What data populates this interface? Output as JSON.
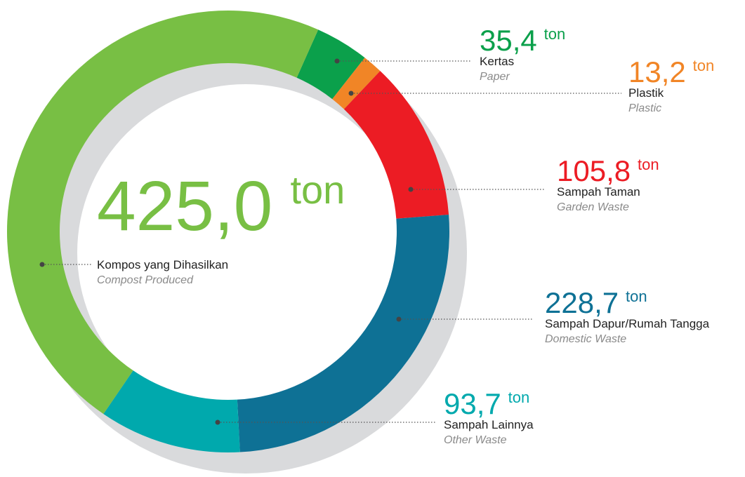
{
  "chart_data": {
    "type": "donut",
    "unit": "ton",
    "categories": [
      "Kertas",
      "Plastik",
      "Sampah Taman",
      "Sampah Dapur/Rumah Tangga",
      "Sampah Lainnya",
      "Kompos yang Dihasilkan"
    ],
    "categories_en": [
      "Paper",
      "Plastic",
      "Garden Waste",
      "Domestic Waste",
      "Other Waste",
      "Compost Produced"
    ],
    "values": [
      35.4,
      13.2,
      105.8,
      228.7,
      93.7,
      425.0
    ],
    "value_labels": [
      "35,4",
      "13,2",
      "105,8",
      "228,7",
      "93,7",
      "425,0"
    ],
    "colors": [
      "#0ba04b",
      "#f18526",
      "#ec1c24",
      "#0e7195",
      "#00a9ad",
      "#78bf44"
    ]
  }
}
